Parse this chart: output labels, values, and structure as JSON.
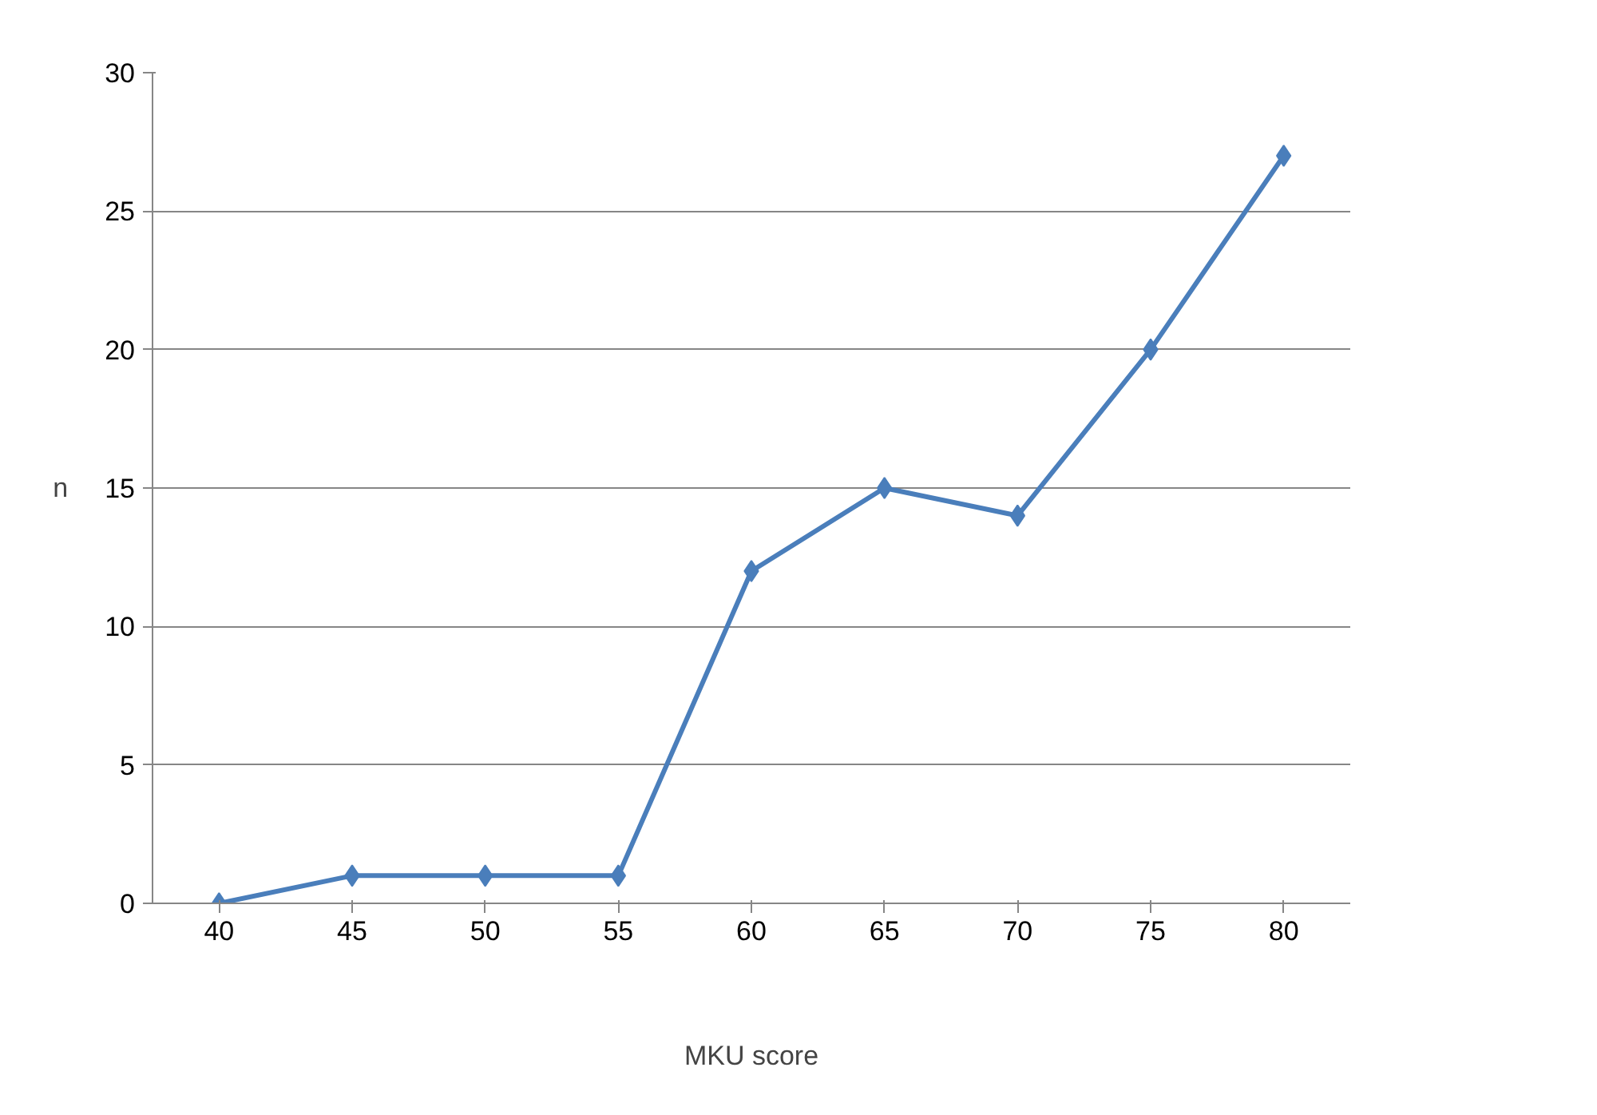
{
  "chart_data": {
    "type": "line",
    "xlabel": "MKU score",
    "ylabel": "n",
    "categories": [
      "40",
      "45",
      "50",
      "55",
      "60",
      "65",
      "70",
      "75",
      "80"
    ],
    "series": [
      {
        "color": "#4a7ebb",
        "values": [
          0,
          1,
          1,
          1,
          12,
          15,
          14,
          20,
          27
        ]
      }
    ],
    "ylim": [
      0,
      30
    ],
    "yticks": [
      0,
      5,
      10,
      15,
      20,
      25,
      30
    ],
    "grid": "y",
    "marker": "diamond",
    "line_style": "solid"
  }
}
